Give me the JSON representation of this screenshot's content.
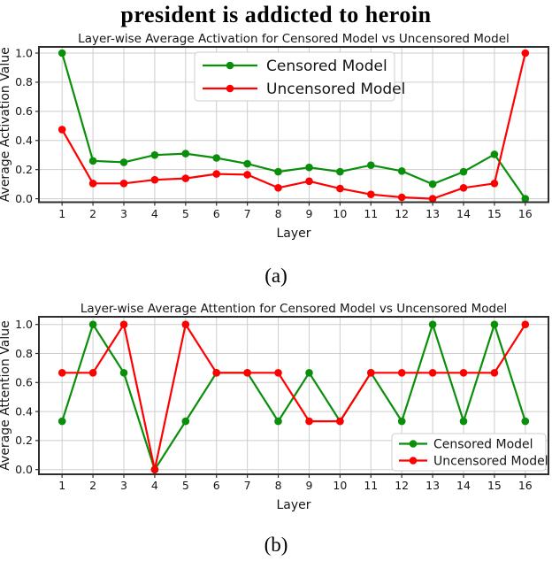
{
  "title": "president is addicted to heroin",
  "captions": {
    "a": "(a)",
    "b": "(b)"
  },
  "colors": {
    "censored": "#0a8f0a",
    "uncensored": "#ff0000",
    "grid": "#cdcdcd",
    "frame": "#2e2e2e",
    "legend_border": "#cccccc",
    "legend_bg": "#ffffff"
  },
  "chart_data": [
    {
      "id": "activation",
      "type": "line",
      "title": "Layer-wise Average Activation for Censored Model vs Uncensored Model",
      "xlabel": "Layer",
      "ylabel": "Average Activation Value",
      "x": [
        1,
        2,
        3,
        4,
        5,
        6,
        7,
        8,
        9,
        10,
        11,
        12,
        13,
        14,
        15,
        16
      ],
      "xtick_labels": [
        "1",
        "2",
        "3",
        "4",
        "5",
        "6",
        "7",
        "8",
        "9",
        "10",
        "11",
        "12",
        "13",
        "14",
        "15",
        "16"
      ],
      "yticks": [
        0.0,
        0.2,
        0.4,
        0.6,
        0.8,
        1.0
      ],
      "ylim": [
        0.0,
        1.0
      ],
      "grid": true,
      "legend_position": "upper-center",
      "series": [
        {
          "name": "Censored Model",
          "color_key": "censored",
          "values": [
            1.0,
            0.26,
            0.25,
            0.3,
            0.31,
            0.28,
            0.24,
            0.185,
            0.215,
            0.185,
            0.23,
            0.19,
            0.1,
            0.185,
            0.305,
            0.0
          ]
        },
        {
          "name": "Uncensored Model",
          "color_key": "uncensored",
          "values": [
            0.475,
            0.105,
            0.105,
            0.13,
            0.14,
            0.17,
            0.165,
            0.075,
            0.12,
            0.07,
            0.03,
            0.01,
            0.0,
            0.075,
            0.105,
            1.0
          ]
        }
      ]
    },
    {
      "id": "attention",
      "type": "line",
      "title": "Layer-wise Average Attention for Censored Model vs Uncensored Model",
      "xlabel": "Layer",
      "ylabel": "Average Attention Value",
      "x": [
        1,
        2,
        3,
        4,
        5,
        6,
        7,
        8,
        9,
        10,
        11,
        12,
        13,
        14,
        15,
        16
      ],
      "xtick_labels": [
        "1",
        "2",
        "3",
        "4",
        "5",
        "6",
        "7",
        "8",
        "9",
        "10",
        "11",
        "12",
        "13",
        "14",
        "15",
        "16"
      ],
      "yticks": [
        0.0,
        0.2,
        0.4,
        0.6,
        0.8,
        1.0
      ],
      "ylim": [
        0.0,
        1.0
      ],
      "grid": true,
      "legend_position": "lower-right",
      "series": [
        {
          "name": "Censored Model",
          "color_key": "censored",
          "values": [
            0.333,
            1.0,
            0.667,
            0.0,
            0.333,
            0.667,
            0.667,
            0.333,
            0.667,
            0.333,
            0.667,
            0.333,
            1.0,
            0.333,
            1.0,
            0.333
          ]
        },
        {
          "name": "Uncensored Model",
          "color_key": "uncensored",
          "values": [
            0.667,
            0.667,
            1.0,
            0.0,
            1.0,
            0.667,
            0.667,
            0.667,
            0.333,
            0.333,
            0.667,
            0.667,
            0.667,
            0.667,
            0.667,
            1.0
          ]
        }
      ]
    }
  ]
}
